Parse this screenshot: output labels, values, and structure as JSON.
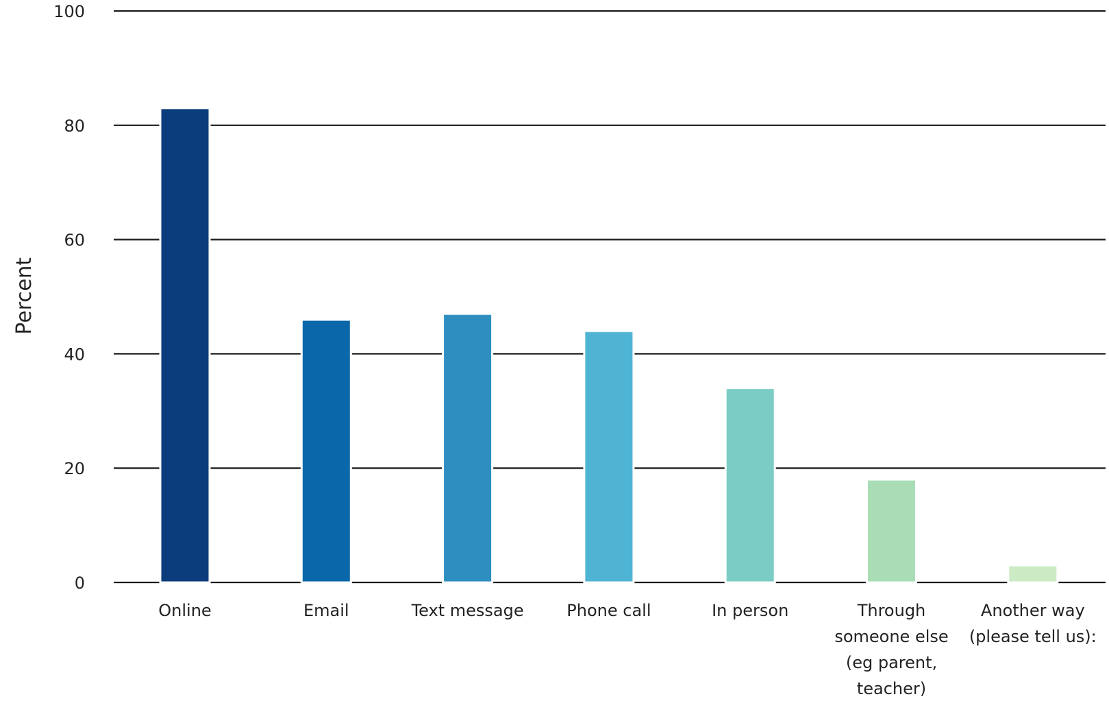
{
  "chart_data": {
    "type": "bar",
    "title": "",
    "xlabel": "",
    "ylabel": "Percent",
    "ylim": [
      0,
      100
    ],
    "yticks": [
      0,
      20,
      40,
      60,
      80,
      100
    ],
    "grid": true,
    "categories": [
      "Online",
      "Email",
      "Text message",
      "Phone call",
      "In person",
      "Through someone else (eg parent, teacher)",
      "Another way (please tell us):"
    ],
    "category_lines": [
      [
        "Online"
      ],
      [
        "Email"
      ],
      [
        "Text message"
      ],
      [
        "Phone call"
      ],
      [
        "In person"
      ],
      [
        "Through",
        "someone else",
        "(eg parent,",
        "teacher)"
      ],
      [
        "Another way",
        "(please tell us):"
      ]
    ],
    "values": [
      83,
      46,
      47,
      44,
      34,
      18,
      3
    ],
    "colors": [
      "#0b3d7c",
      "#0a67a9",
      "#2d8ec0",
      "#4fb3d3",
      "#7bccc4",
      "#a8ddb5",
      "#ccebc5"
    ]
  }
}
